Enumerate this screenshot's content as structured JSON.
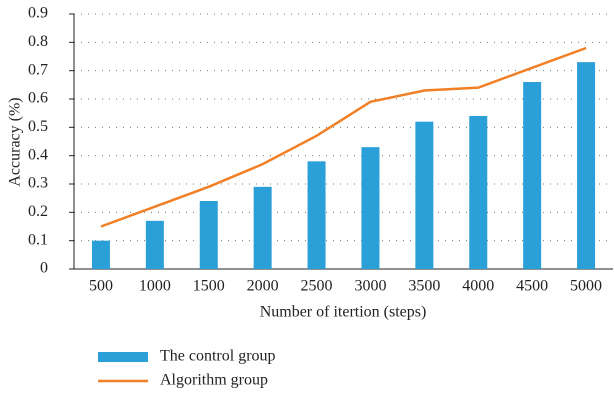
{
  "chart_data": {
    "type": "bar",
    "x_label": "Number of itertion (steps)",
    "y_label": "Accuracy (%)",
    "categories": [
      "500",
      "1000",
      "1500",
      "2000",
      "2500",
      "3000",
      "3500",
      "4000",
      "4500",
      "5000"
    ],
    "series": [
      {
        "name": "The control group",
        "type": "bar",
        "color": "#2a9fd8",
        "values": [
          0.1,
          0.17,
          0.24,
          0.29,
          0.38,
          0.43,
          0.52,
          0.54,
          0.66,
          0.73
        ]
      },
      {
        "name": "Algorithm group",
        "type": "line",
        "color": "#f07f26",
        "values": [
          0.15,
          0.22,
          0.29,
          0.37,
          0.47,
          0.59,
          0.63,
          0.64,
          0.71,
          0.78
        ]
      }
    ],
    "ylim": [
      0,
      0.9
    ],
    "yticks": [
      0,
      0.1,
      0.2,
      0.3,
      0.4,
      0.5,
      0.6,
      0.7,
      0.8,
      0.9
    ],
    "grid": true,
    "legend": "bottom"
  }
}
